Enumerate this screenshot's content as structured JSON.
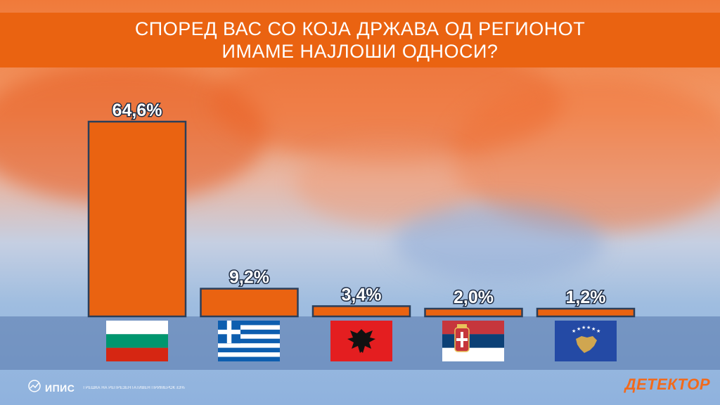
{
  "header": {
    "title_line1": "СПОРЕД ВАС СО КОЈА ДРЖАВА ОД РЕГИОНОТ",
    "title_line2": "ИМАМЕ НАЈЛОШИ ОДНОСИ?"
  },
  "chart_data": {
    "type": "bar",
    "categories": [
      "Bulgaria",
      "Greece",
      "Albania",
      "Serbia",
      "Kosovo"
    ],
    "values": [
      64.6,
      9.2,
      3.4,
      2.0,
      1.2
    ],
    "value_labels": [
      "64,6%",
      "9,2%",
      "3,4%",
      "2,0%",
      "1,2%"
    ],
    "ylim": [
      0,
      64.6
    ],
    "grid": false,
    "legend": "none",
    "bar_color": "#ea6311",
    "bar_outline": "#2a3e5a"
  },
  "flags": [
    {
      "country": "Bulgaria",
      "icon": "bulgaria-flag-icon"
    },
    {
      "country": "Greece",
      "icon": "greece-flag-icon"
    },
    {
      "country": "Albania",
      "icon": "albania-flag-icon"
    },
    {
      "country": "Serbia",
      "icon": "serbia-flag-icon"
    },
    {
      "country": "Kosovo",
      "icon": "kosovo-flag-icon"
    }
  ],
  "footer": {
    "source": "ИПИС",
    "note": "ГРЕШКА НА РЕПРЕЗЕНТАТИВЕН ПРИМЕРОК ±3%",
    "logo": "ДЕТЕКТОР"
  },
  "colors": {
    "title_bg": "#ea6311",
    "logo": "#f26a1b"
  }
}
